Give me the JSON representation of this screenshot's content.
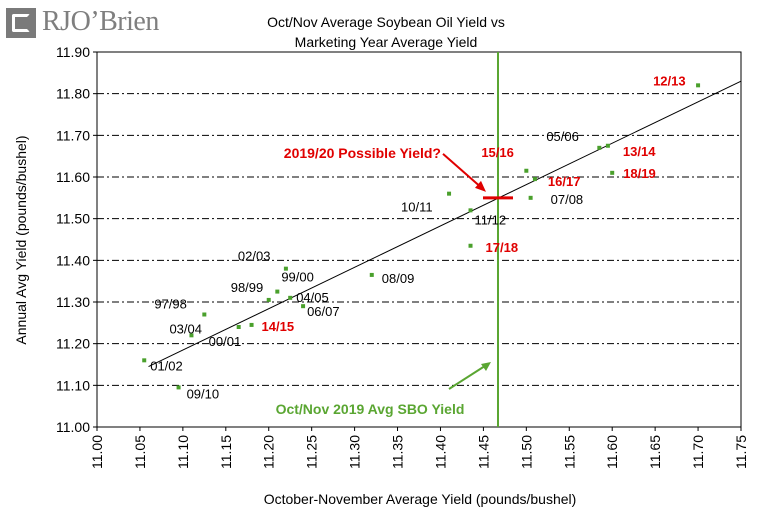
{
  "logo": {
    "text": "RJO’Brien"
  },
  "chart_data": {
    "type": "scatter",
    "title_line1": "Oct/Nov Average Soybean Oil Yield vs",
    "title_line2": "Marketing Year Average Yield",
    "xlabel": "October-November Average Yield (pounds/bushel)",
    "ylabel": "Annual Avg Yield (pounds/bushel)",
    "xlim": [
      11.0,
      11.75
    ],
    "ylim": [
      11.0,
      11.9
    ],
    "x_ticks": [
      "11.00",
      "11.05",
      "11.10",
      "11.15",
      "11.20",
      "11.25",
      "11.30",
      "11.35",
      "11.40",
      "11.45",
      "11.50",
      "11.55",
      "11.60",
      "11.65",
      "11.70",
      "11.75"
    ],
    "y_ticks": [
      "11.00",
      "11.10",
      "11.20",
      "11.30",
      "11.40",
      "11.50",
      "11.60",
      "11.70",
      "11.80",
      "11.90"
    ],
    "gridlines": "horizontal dash-dot",
    "points": [
      {
        "label": "01/02",
        "x": 11.055,
        "y": 11.16,
        "color": "#000000"
      },
      {
        "label": "09/10",
        "x": 11.095,
        "y": 11.095,
        "color": "#000000"
      },
      {
        "label": "03/04",
        "x": 11.11,
        "y": 11.22,
        "color": "#000000"
      },
      {
        "label": "97/98",
        "x": 11.125,
        "y": 11.27,
        "color": "#000000"
      },
      {
        "label": "00/01",
        "x": 11.165,
        "y": 11.24,
        "color": "#000000"
      },
      {
        "label": "14/15",
        "x": 11.18,
        "y": 11.245,
        "color": "#e00000"
      },
      {
        "label": "98/99",
        "x": 11.2,
        "y": 11.305,
        "color": "#000000"
      },
      {
        "label": "02/03",
        "x": 11.22,
        "y": 11.38,
        "color": "#000000"
      },
      {
        "label": "99/00",
        "x": 11.21,
        "y": 11.325,
        "color": "#000000"
      },
      {
        "label": "04/05",
        "x": 11.225,
        "y": 11.31,
        "color": "#000000"
      },
      {
        "label": "06/07",
        "x": 11.24,
        "y": 11.29,
        "color": "#000000"
      },
      {
        "label": "08/09",
        "x": 11.32,
        "y": 11.365,
        "color": "#000000"
      },
      {
        "label": "10/11",
        "x": 11.41,
        "y": 11.56,
        "color": "#000000"
      },
      {
        "label": "11/12",
        "x": 11.435,
        "y": 11.52,
        "color": "#000000"
      },
      {
        "label": "17/18",
        "x": 11.435,
        "y": 11.435,
        "color": "#e00000"
      },
      {
        "label": "15/16",
        "x": 11.5,
        "y": 11.615,
        "color": "#e00000"
      },
      {
        "label": "16/17",
        "x": 11.51,
        "y": 11.595,
        "color": "#e00000"
      },
      {
        "label": "07/08",
        "x": 11.505,
        "y": 11.55,
        "color": "#000000"
      },
      {
        "label": "05/06",
        "x": 11.585,
        "y": 11.67,
        "color": "#000000"
      },
      {
        "label": "13/14",
        "x": 11.595,
        "y": 11.675,
        "color": "#e00000"
      },
      {
        "label": "18/19",
        "x": 11.6,
        "y": 11.61,
        "color": "#e00000"
      },
      {
        "label": "12/13",
        "x": 11.7,
        "y": 11.82,
        "color": "#e00000"
      }
    ],
    "trendline": {
      "x": [
        11.06,
        11.75
      ],
      "y": [
        11.145,
        11.83
      ]
    },
    "vertical_marker": {
      "x": 11.467,
      "label": "Oct/Nov 2019 Avg SBO Yield",
      "color": "#5aa632"
    },
    "possible_yield": {
      "x": 11.467,
      "y": 11.55,
      "label": "2019/20 Possible Yield?",
      "color": "#e00000"
    }
  }
}
